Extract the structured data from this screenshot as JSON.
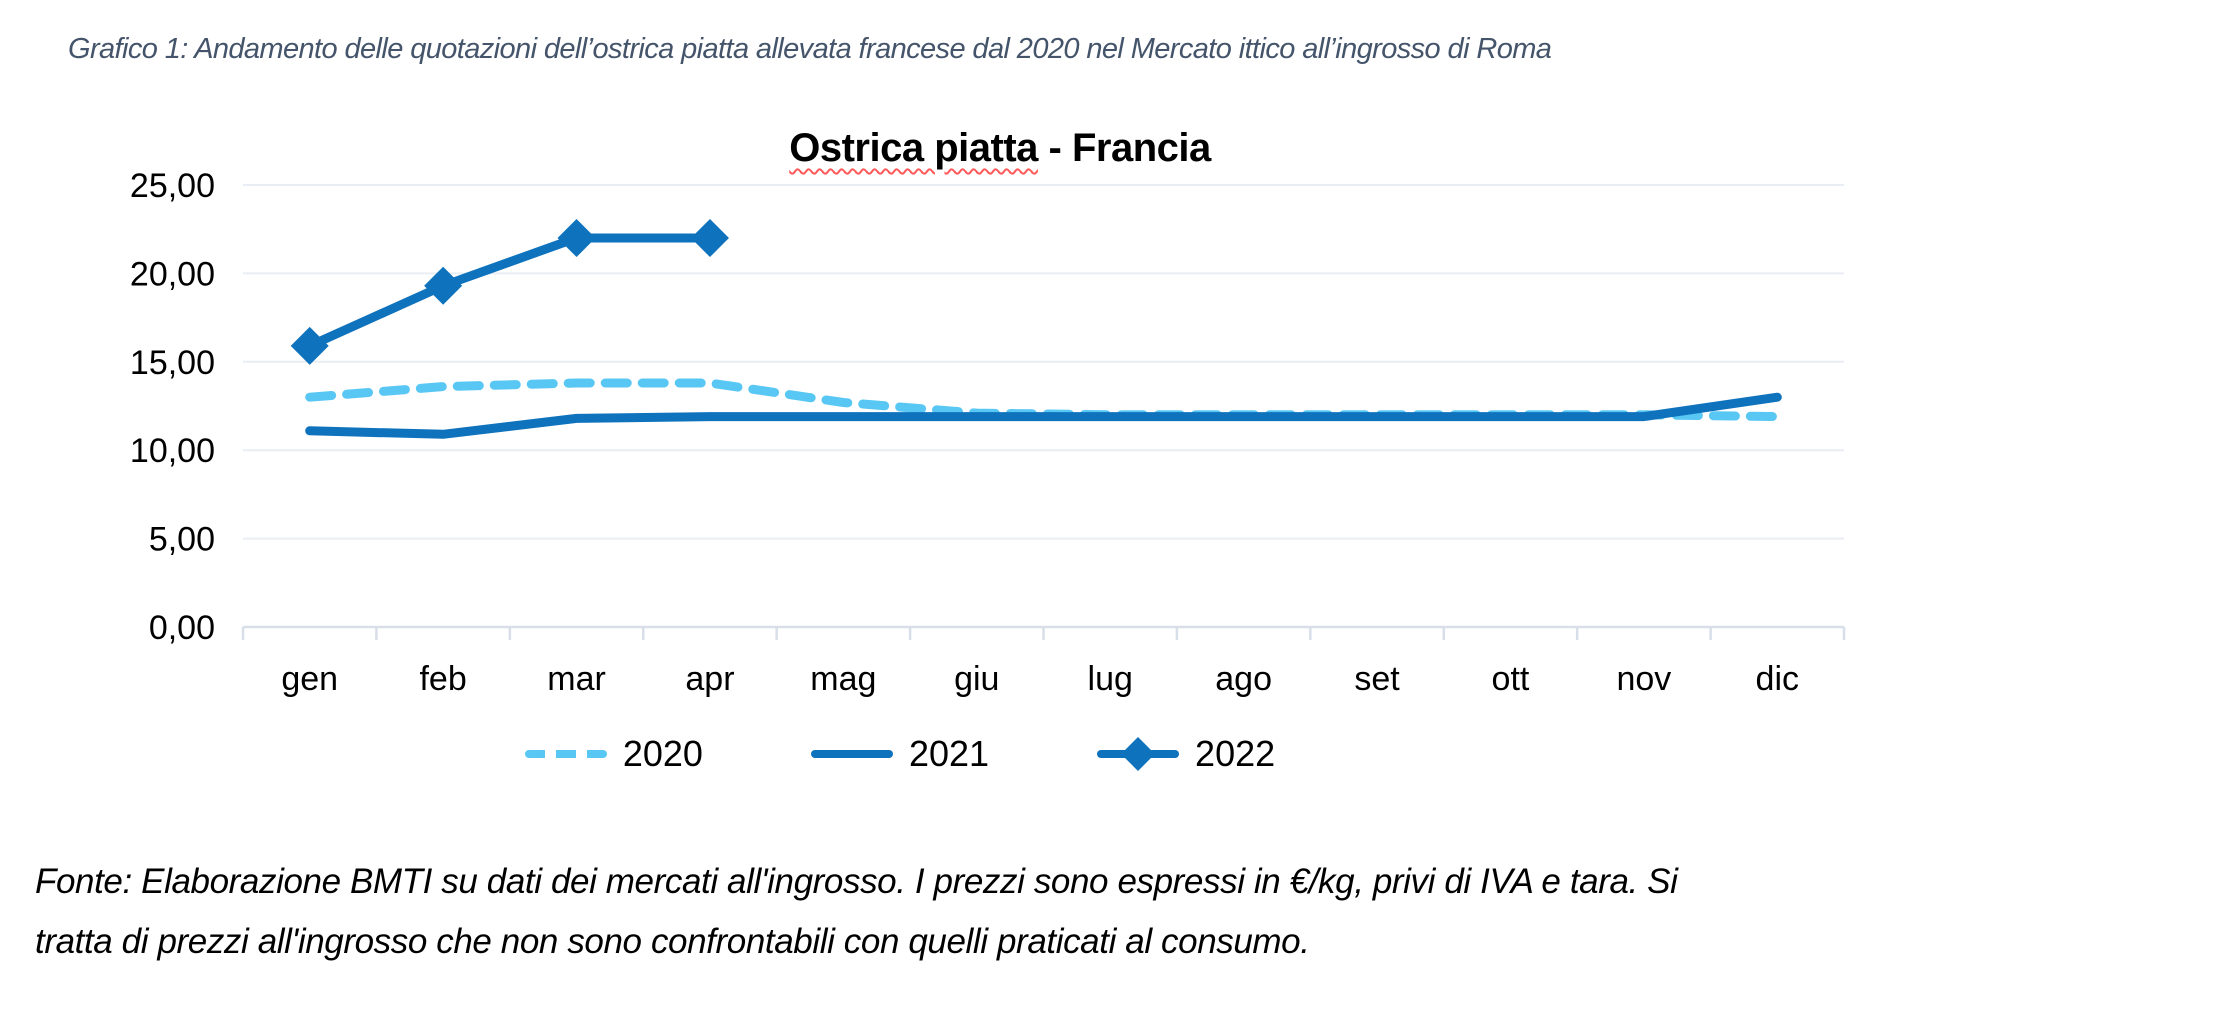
{
  "caption": "Grafico 1: Andamento delle quotazioni dell’ostrica piatta allevata francese dal 2020 nel Mercato ittico all’ingrosso di Roma",
  "chart_data": {
    "type": "line",
    "title": {
      "underlined_part": "Ostrica piatta",
      "rest": " - Francia"
    },
    "categories": [
      "gen",
      "feb",
      "mar",
      "apr",
      "mag",
      "giu",
      "lug",
      "ago",
      "set",
      "ott",
      "nov",
      "dic"
    ],
    "y_axis": {
      "min": 0,
      "max": 25,
      "step": 5,
      "tick_labels": [
        "0,00",
        "5,00",
        "10,00",
        "15,00",
        "20,00",
        "25,00"
      ]
    },
    "series": [
      {
        "name": "2020",
        "style": "dashed",
        "marker": "none",
        "color": "#58C7F3",
        "values": [
          13.0,
          13.6,
          13.8,
          13.8,
          12.7,
          12.1,
          12.0,
          12.0,
          12.0,
          12.0,
          12.0,
          11.9
        ]
      },
      {
        "name": "2021",
        "style": "solid",
        "marker": "none",
        "color": "#0E72BD",
        "values": [
          11.1,
          10.9,
          11.8,
          11.9,
          11.9,
          11.9,
          11.9,
          11.9,
          11.9,
          11.9,
          11.9,
          13.0
        ]
      },
      {
        "name": "2022",
        "style": "solid",
        "marker": "diamond",
        "color": "#0E72BD",
        "values": [
          15.9,
          19.3,
          22.0,
          22.0
        ]
      }
    ],
    "unit": "€/kg",
    "grid": "horizontal",
    "legend_position": "bottom"
  },
  "footer": {
    "line1": "Fonte: Elaborazione BMTI su dati dei mercati all'ingrosso. I prezzi sono espressi in €/kg, privi di IVA e tara. Si",
    "line2": "tratta di prezzi all'ingrosso che non sono confrontabili con quelli praticati al consumo."
  },
  "colors": {
    "series_blue": "#0E72BD",
    "series_lightblue": "#58C7F3",
    "gridline": "#E9EEF4",
    "axis": "#D9DFE8",
    "caption_text": "#44546A",
    "spellcheck_red": "#FF5A5A"
  }
}
